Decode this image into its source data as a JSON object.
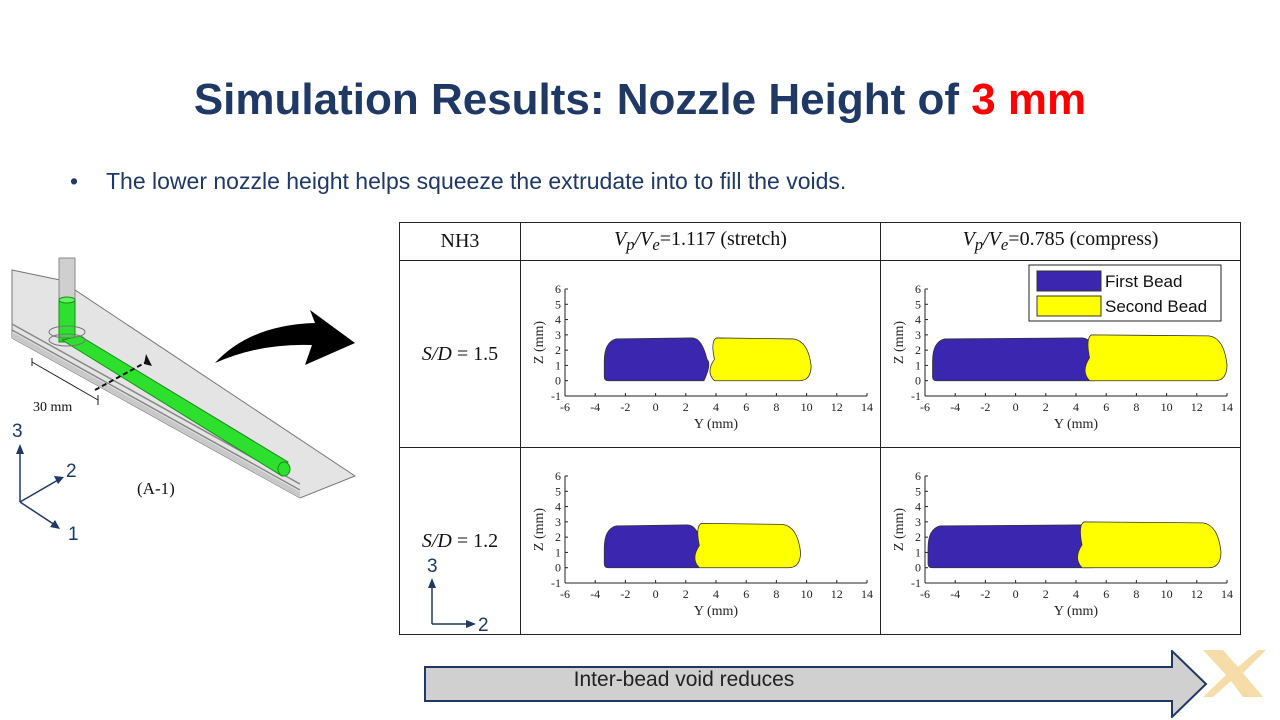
{
  "slide": {
    "title_main": "Simulation Results: Nozzle Height of ",
    "title_highlight": "3 mm",
    "bullet": "The lower nozzle height helps squeeze the extrudate into to fill the voids.",
    "bullet_marker": "•"
  },
  "diagram": {
    "dimension_label": "30 mm",
    "caption": "(A-1)",
    "axis_1": "1",
    "axis_2": "2",
    "axis_3": "3"
  },
  "table": {
    "corner": "NH3",
    "col1_header_ratio": "V",
    "col1_header_value": "=1.117 (stretch)",
    "col2_header_value": "=0.785 (compress)",
    "row1_label_value": " = 1.5",
    "row2_label_value": " = 1.2",
    "sd_label": "S/D",
    "vp_sub": "p",
    "ve_sub": "e"
  },
  "chart_data": [
    {
      "type": "area",
      "panel": "S/D = 1.5, Vp/Ve=1.117 (stretch)",
      "xlabel": "Y (mm)",
      "ylabel": "Z (mm)",
      "xlim": [
        -6,
        14
      ],
      "ylim": [
        -1,
        6
      ],
      "xticks": [
        -6,
        -4,
        -2,
        0,
        2,
        4,
        6,
        8,
        10,
        12,
        14
      ],
      "yticks": [
        -1,
        0,
        1,
        2,
        3,
        4,
        5,
        6
      ],
      "series": [
        {
          "name": "First Bead",
          "color": "#3b26b0",
          "y_range": [
            -3.4,
            3.6
          ],
          "z_range": [
            0,
            2.8
          ]
        },
        {
          "name": "Second Bead",
          "color": "#ffff00",
          "y_range": [
            3.5,
            10.3
          ],
          "z_range": [
            0,
            2.8
          ]
        }
      ],
      "legend": false
    },
    {
      "type": "area",
      "panel": "S/D = 1.5, Vp/Ve=0.785 (compress)",
      "xlabel": "Y (mm)",
      "ylabel": "Z (mm)",
      "xlim": [
        -6,
        14
      ],
      "ylim": [
        -1,
        6
      ],
      "xticks": [
        -6,
        -4,
        -2,
        0,
        2,
        4,
        6,
        8,
        10,
        12,
        14
      ],
      "yticks": [
        -1,
        0,
        1,
        2,
        3,
        4,
        5,
        6
      ],
      "series": [
        {
          "name": "First Bead",
          "color": "#3b26b0",
          "y_range": [
            -5.5,
            5.6
          ],
          "z_range": [
            0,
            2.8
          ]
        },
        {
          "name": "Second Bead",
          "color": "#ffff00",
          "y_range": [
            4.5,
            14
          ],
          "z_range": [
            0,
            3.0
          ]
        }
      ],
      "legend": true,
      "legend_position": "top-right"
    },
    {
      "type": "area",
      "panel": "S/D = 1.2, Vp/Ve=1.117 (stretch)",
      "xlabel": "Y (mm)",
      "ylabel": "Z (mm)",
      "xlim": [
        -6,
        14
      ],
      "ylim": [
        -1,
        6
      ],
      "xticks": [
        -6,
        -4,
        -2,
        0,
        2,
        4,
        6,
        8,
        10,
        12,
        14
      ],
      "yticks": [
        -1,
        0,
        1,
        2,
        3,
        4,
        5,
        6
      ],
      "series": [
        {
          "name": "First Bead",
          "color": "#3b26b0",
          "y_range": [
            -3.4,
            3.3
          ],
          "z_range": [
            0,
            2.8
          ]
        },
        {
          "name": "Second Bead",
          "color": "#ffff00",
          "y_range": [
            2.5,
            9.6
          ],
          "z_range": [
            0,
            2.9
          ]
        }
      ],
      "legend": false
    },
    {
      "type": "area",
      "panel": "S/D = 1.2, Vp/Ve=0.785 (compress)",
      "xlabel": "Y (mm)",
      "ylabel": "Z (mm)",
      "xlim": [
        -6,
        14
      ],
      "ylim": [
        -1,
        6
      ],
      "xticks": [
        -6,
        -4,
        -2,
        0,
        2,
        4,
        6,
        8,
        10,
        12,
        14
      ],
      "yticks": [
        -1,
        0,
        1,
        2,
        3,
        4,
        5,
        6
      ],
      "series": [
        {
          "name": "First Bead",
          "color": "#3b26b0",
          "y_range": [
            -5.8,
            5.5
          ],
          "z_range": [
            0,
            2.8
          ]
        },
        {
          "name": "Second Bead",
          "color": "#ffff00",
          "y_range": [
            4.0,
            13.6
          ],
          "z_range": [
            0,
            3.0
          ]
        }
      ],
      "legend": false
    }
  ],
  "legend": {
    "first": "First Bead",
    "second": "Second Bead"
  },
  "small_axes": {
    "up": "3",
    "right": "2"
  },
  "footer": {
    "void_label": "Inter-bead void reduces"
  }
}
